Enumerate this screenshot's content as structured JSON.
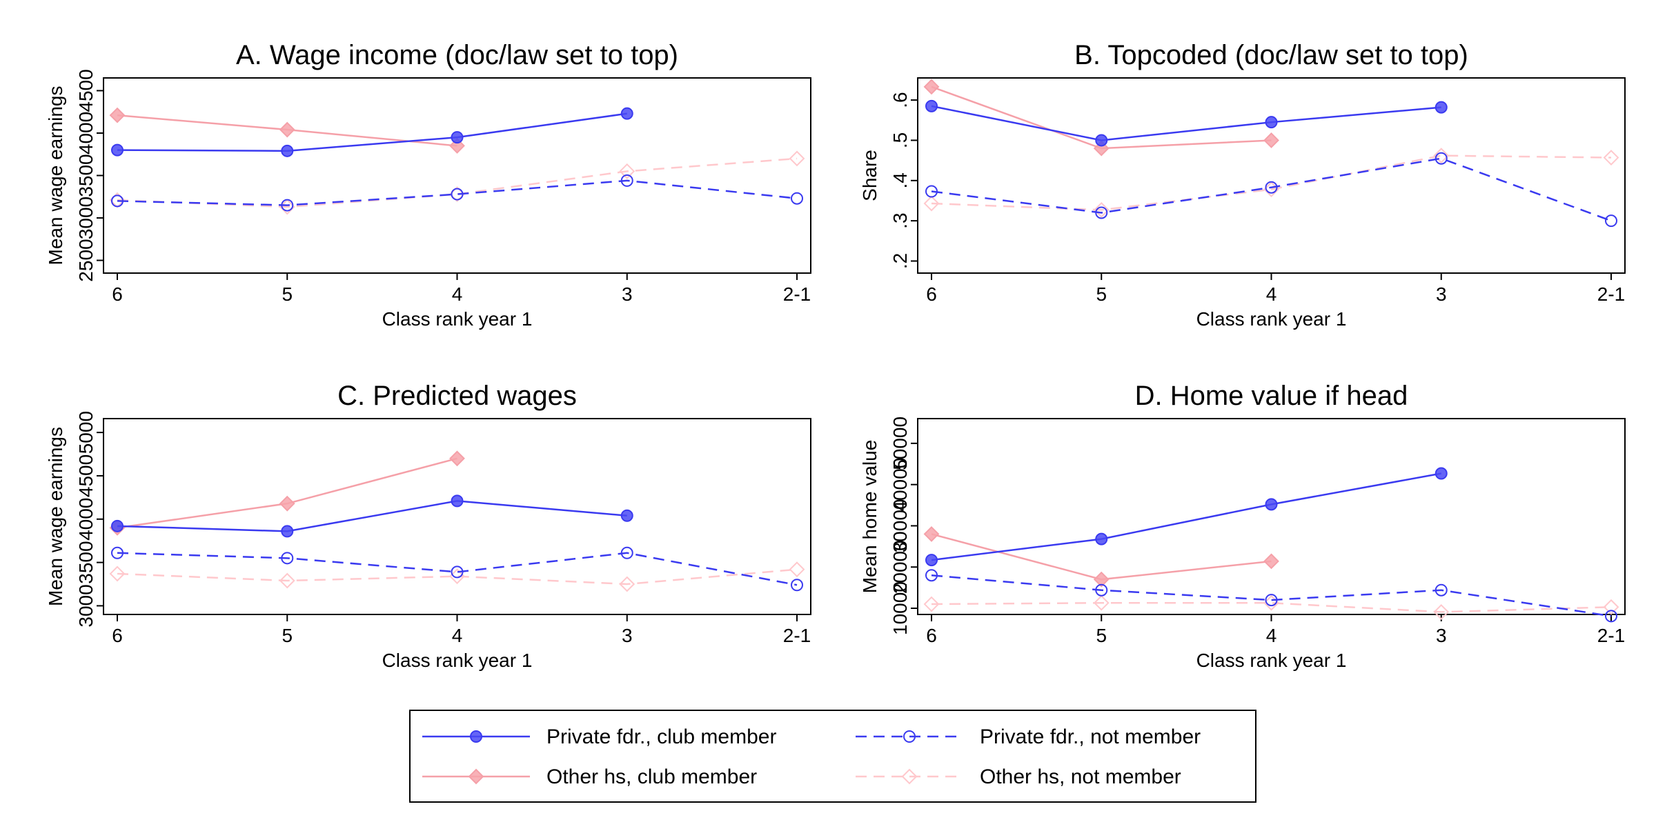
{
  "colors": {
    "blue": "#3a3af0",
    "blue_fill": "#4a4af5",
    "pink": "#f5a0a8",
    "pink_fill": "#f7a5ab",
    "pink_light": "#ffc8cc"
  },
  "legend": {
    "items": [
      {
        "label": "Private fdr., club member",
        "series": "private_club"
      },
      {
        "label": "Private fdr., not member",
        "series": "private_not"
      },
      {
        "label": "Other hs, club member",
        "series": "other_club"
      },
      {
        "label": "Other hs, not member",
        "series": "other_not"
      }
    ]
  },
  "chart_data": [
    {
      "type": "line",
      "title": "A. Wage income (doc/law set to top)",
      "xlabel": "Class rank year 1",
      "ylabel": "Mean wage earnings",
      "categories": [
        "6",
        "5",
        "4",
        "3",
        "2-1"
      ],
      "ylim": [
        2350,
        4650
      ],
      "yticks": [
        2500,
        3000,
        3500,
        4000,
        4500
      ],
      "ytick_labels": [
        "2500",
        "3000",
        "3500",
        "4000",
        "4500"
      ],
      "series": [
        {
          "name": "Private fdr., club member",
          "key": "private_club",
          "values": [
            3800,
            3790,
            3950,
            4230,
            null
          ]
        },
        {
          "name": "Private fdr., not member",
          "key": "private_not",
          "values": [
            3200,
            3150,
            3280,
            3440,
            3230
          ]
        },
        {
          "name": "Other hs, club member",
          "key": "other_club",
          "values": [
            4210,
            4040,
            3850,
            null,
            null
          ]
        },
        {
          "name": "Other hs, not member",
          "key": "other_not",
          "values": [
            3210,
            3130,
            3280,
            3550,
            3700
          ]
        }
      ]
    },
    {
      "type": "line",
      "title": "B. Topcoded (doc/law set to top)",
      "xlabel": "Class rank year 1",
      "ylabel": "Share",
      "categories": [
        "6",
        "5",
        "4",
        "3",
        "2-1"
      ],
      "ylim": [
        0.17,
        0.655
      ],
      "yticks": [
        0.2,
        0.3,
        0.4,
        0.5,
        0.6
      ],
      "ytick_labels": [
        ".2",
        ".3",
        ".4",
        ".5",
        ".6"
      ],
      "series": [
        {
          "name": "Private fdr., club member",
          "key": "private_club",
          "values": [
            0.585,
            0.5,
            0.545,
            0.582,
            null
          ]
        },
        {
          "name": "Private fdr., not member",
          "key": "private_not",
          "values": [
            0.373,
            0.32,
            0.383,
            0.455,
            0.3
          ]
        },
        {
          "name": "Other hs, club member",
          "key": "other_club",
          "values": [
            0.633,
            0.48,
            0.5,
            null,
            null
          ]
        },
        {
          "name": "Other hs, not member",
          "key": "other_not",
          "values": [
            0.343,
            0.327,
            0.378,
            0.462,
            0.457
          ]
        }
      ]
    },
    {
      "type": "line",
      "title": "C. Predicted wages",
      "xlabel": "Class rank year 1",
      "ylabel": "Mean wage earnings",
      "categories": [
        "6",
        "5",
        "4",
        "3",
        "2-1"
      ],
      "ylim": [
        2900,
        5160
      ],
      "yticks": [
        3000,
        3500,
        4000,
        4500,
        5000
      ],
      "ytick_labels": [
        "3000",
        "3500",
        "4000",
        "4500",
        "5000"
      ],
      "series": [
        {
          "name": "Private fdr., club member",
          "key": "private_club",
          "values": [
            3920,
            3860,
            4210,
            4040,
            null
          ]
        },
        {
          "name": "Private fdr., not member",
          "key": "private_not",
          "values": [
            3610,
            3550,
            3390,
            3610,
            3240
          ]
        },
        {
          "name": "Other hs, club member",
          "key": "other_club",
          "values": [
            3900,
            4180,
            4700,
            null,
            null
          ]
        },
        {
          "name": "Other hs, not member",
          "key": "other_not",
          "values": [
            3370,
            3290,
            3340,
            3250,
            3420
          ]
        }
      ]
    },
    {
      "type": "line",
      "title": "D. Home value if head",
      "xlabel": "Class rank year 1",
      "ylabel": "Mean home value",
      "categories": [
        "6",
        "5",
        "4",
        "3",
        "2-1"
      ],
      "ylim": [
        8500,
        56000
      ],
      "yticks": [
        10000,
        20000,
        30000,
        40000,
        50000
      ],
      "ytick_labels": [
        "10000",
        "20000",
        "30000",
        "40000",
        "50000"
      ],
      "series": [
        {
          "name": "Private fdr., club member",
          "key": "private_club",
          "values": [
            21700,
            26800,
            35200,
            42700,
            null
          ]
        },
        {
          "name": "Private fdr., not member",
          "key": "private_not",
          "values": [
            18000,
            14400,
            12000,
            14400,
            8100
          ]
        },
        {
          "name": "Other hs, club member",
          "key": "other_club",
          "values": [
            28000,
            17000,
            21400,
            null,
            null
          ]
        },
        {
          "name": "Other hs, not member",
          "key": "other_not",
          "values": [
            11000,
            11300,
            11300,
            9100,
            10300
          ]
        }
      ]
    }
  ]
}
